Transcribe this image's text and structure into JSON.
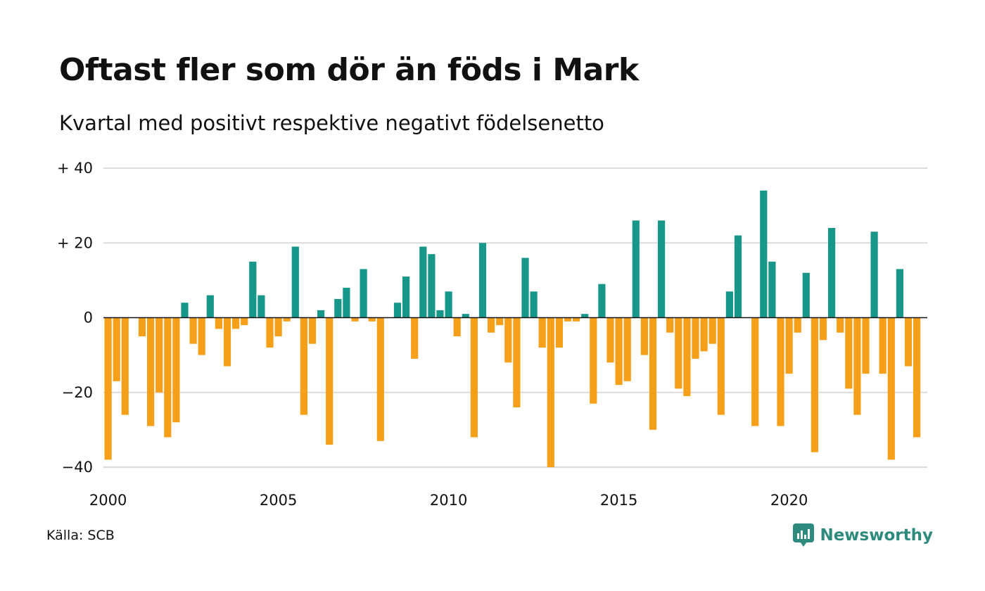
{
  "header": {
    "title": "Oftast fler som dör än föds i Mark",
    "subtitle": "Kvartal med positivt respektive negativt födelsenetto"
  },
  "footer": {
    "source": "Källa: SCB",
    "brand": "Newsworthy"
  },
  "colors": {
    "positive": "#17968a",
    "negative": "#f6a01a",
    "grid": "#dcdcdc",
    "baseline": "#111111",
    "brand": "#2f8a7e"
  },
  "icons": {
    "brand_logo": "newsworthy-logo-icon"
  },
  "chart_data": {
    "type": "bar",
    "title": "Oftast fler som dör än föds i Mark",
    "subtitle": "Kvartal med positivt respektive negativt födelsenetto",
    "xlabel": "",
    "ylabel": "",
    "ylim": [
      -40,
      40
    ],
    "yticks": [
      {
        "value": 40,
        "label": "+ 40"
      },
      {
        "value": 20,
        "label": "+ 20"
      },
      {
        "value": 0,
        "label": "0"
      },
      {
        "value": -20,
        "label": "−20"
      },
      {
        "value": -40,
        "label": "−40"
      }
    ],
    "xticks": [
      "2000",
      "2005",
      "2010",
      "2015",
      "2020"
    ],
    "x_start_year": 2000,
    "periods_per_year": 4,
    "grid": true,
    "legend": "none",
    "values": [
      -38,
      -17,
      -26,
      0,
      -5,
      -29,
      -20,
      -32,
      -28,
      4,
      -7,
      -10,
      6,
      -3,
      -13,
      -3,
      -2,
      15,
      6,
      -8,
      -5,
      -1,
      19,
      -26,
      -7,
      2,
      -34,
      5,
      8,
      -1,
      13,
      -1,
      -33,
      0,
      4,
      11,
      -11,
      19,
      17,
      2,
      7,
      -5,
      1,
      -32,
      20,
      -4,
      -2,
      -12,
      -24,
      16,
      7,
      -8,
      -40,
      -8,
      -1,
      -1,
      1,
      -23,
      9,
      -12,
      -18,
      -17,
      26,
      -10,
      -30,
      26,
      -4,
      -19,
      -21,
      -11,
      -9,
      -7,
      -26,
      7,
      22,
      0,
      -29,
      34,
      15,
      -29,
      -15,
      -4,
      12,
      -36,
      -6,
      24,
      -4,
      -19,
      -26,
      -15,
      23,
      -15,
      -38,
      13,
      -13,
      -32
    ]
  }
}
